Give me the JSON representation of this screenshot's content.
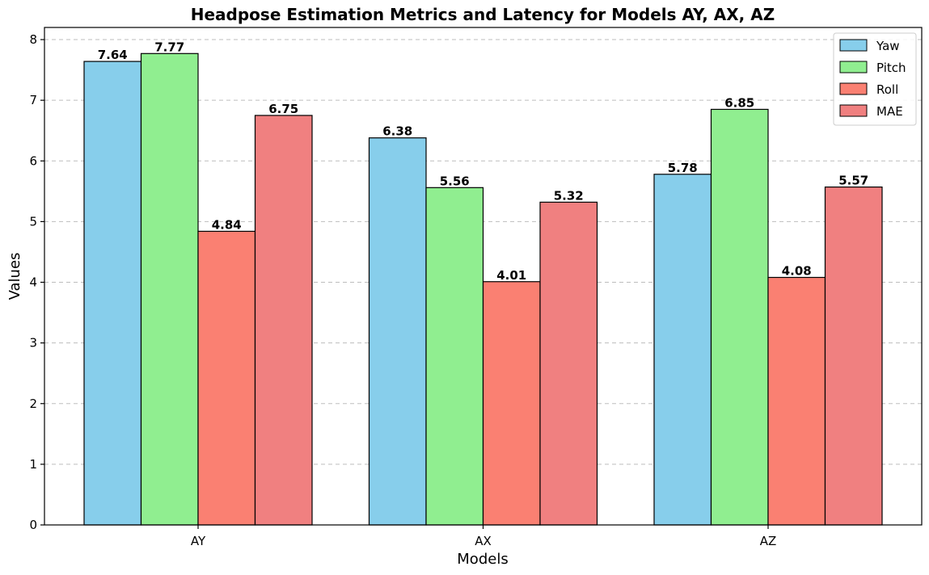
{
  "chart_data": {
    "type": "bar",
    "title": "Headpose Estimation Metrics and Latency for Models AY, AX, AZ",
    "xlabel": "Models",
    "ylabel": "Values",
    "categories": [
      "AY",
      "AX",
      "AZ"
    ],
    "ylim": [
      0,
      8.2
    ],
    "yticks": [
      0,
      1,
      2,
      3,
      4,
      5,
      6,
      7,
      8
    ],
    "grid": "y-dashed",
    "legend_position": "top-right",
    "series": [
      {
        "name": "Yaw",
        "color": "#87ceeb",
        "values": [
          7.64,
          6.38,
          5.78
        ]
      },
      {
        "name": "Pitch",
        "color": "#90ee90",
        "values": [
          7.77,
          5.56,
          6.85
        ]
      },
      {
        "name": "Roll",
        "color": "#fa8072",
        "values": [
          4.84,
          4.01,
          4.08
        ]
      },
      {
        "name": "MAE",
        "color": "#f08080",
        "values": [
          6.75,
          5.32,
          5.57
        ]
      }
    ]
  }
}
